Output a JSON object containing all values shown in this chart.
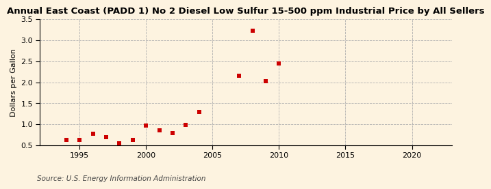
{
  "title": "Annual East Coast (PADD 1) No 2 Diesel Low Sulfur 15-500 ppm Industrial Price by All Sellers",
  "ylabel": "Dollars per Gallon",
  "source": "Source: U.S. Energy Information Administration",
  "background_color": "#fdf3e0",
  "plot_bg_color": "#fdf3e0",
  "dot_color": "#cc0000",
  "years": [
    1994,
    1995,
    1996,
    1997,
    1998,
    1999,
    2000,
    2001,
    2002,
    2003,
    2004,
    2007,
    2008,
    2009,
    2010
  ],
  "values": [
    0.63,
    0.63,
    0.78,
    0.7,
    0.55,
    0.63,
    0.97,
    0.85,
    0.8,
    0.98,
    1.3,
    2.15,
    3.23,
    2.03,
    2.45
  ],
  "xlim": [
    1992,
    2023
  ],
  "ylim": [
    0.5,
    3.5
  ],
  "yticks": [
    0.5,
    1.0,
    1.5,
    2.0,
    2.5,
    3.0,
    3.5
  ],
  "xticks": [
    1995,
    2000,
    2005,
    2010,
    2015,
    2020
  ],
  "grid_color": "#b0b0b0",
  "spine_color": "#000000",
  "title_fontsize": 9.5,
  "label_fontsize": 8,
  "tick_fontsize": 8,
  "source_fontsize": 7.5
}
